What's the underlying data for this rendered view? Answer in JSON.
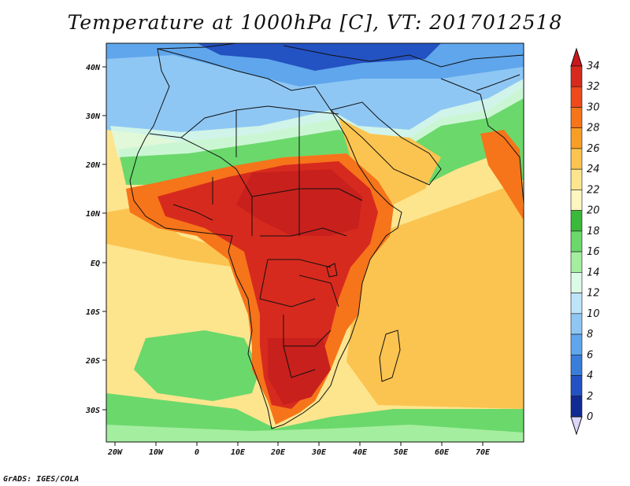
{
  "title": "Temperature at 1000hPa [C], VT: 2017012518",
  "credit": "GrADS: IGES/COLA",
  "lat_labels": [
    "40N",
    "30N",
    "20N",
    "10N",
    "EQ",
    "10S",
    "20S",
    "30S"
  ],
  "lon_labels": [
    "20W",
    "10W",
    "0",
    "10E",
    "20E",
    "30E",
    "40E",
    "50E",
    "60E",
    "70E"
  ],
  "colorbar": {
    "levels": [
      "34",
      "32",
      "30",
      "28",
      "26",
      "24",
      "22",
      "20",
      "18",
      "16",
      "14",
      "12",
      "10",
      "8",
      "6",
      "4",
      "2",
      "0"
    ],
    "colors": [
      "#d72a1e",
      "#ef4a1c",
      "#f6741a",
      "#f89e26",
      "#fbc450",
      "#fde58e",
      "#fef6bf",
      "#3aba3a",
      "#6bd86b",
      "#a4ee9f",
      "#dcfbe6",
      "#bee4fa",
      "#8fc7f4",
      "#5fa6ec",
      "#3a7edc",
      "#2352c2",
      "#122a93",
      "#08115c"
    ],
    "over_color": "#c8181c",
    "under_color": "#dcd6f8"
  },
  "palette": {
    "ocean_warm": "#fde58e",
    "ocean_hot": "#fbc450",
    "land_hot": "#d72a1e",
    "land_very_hot": "#c8201c",
    "cool_green": "#6bd86b",
    "north_blue": "#8fc7f4",
    "deep_blue": "#2352c2"
  }
}
